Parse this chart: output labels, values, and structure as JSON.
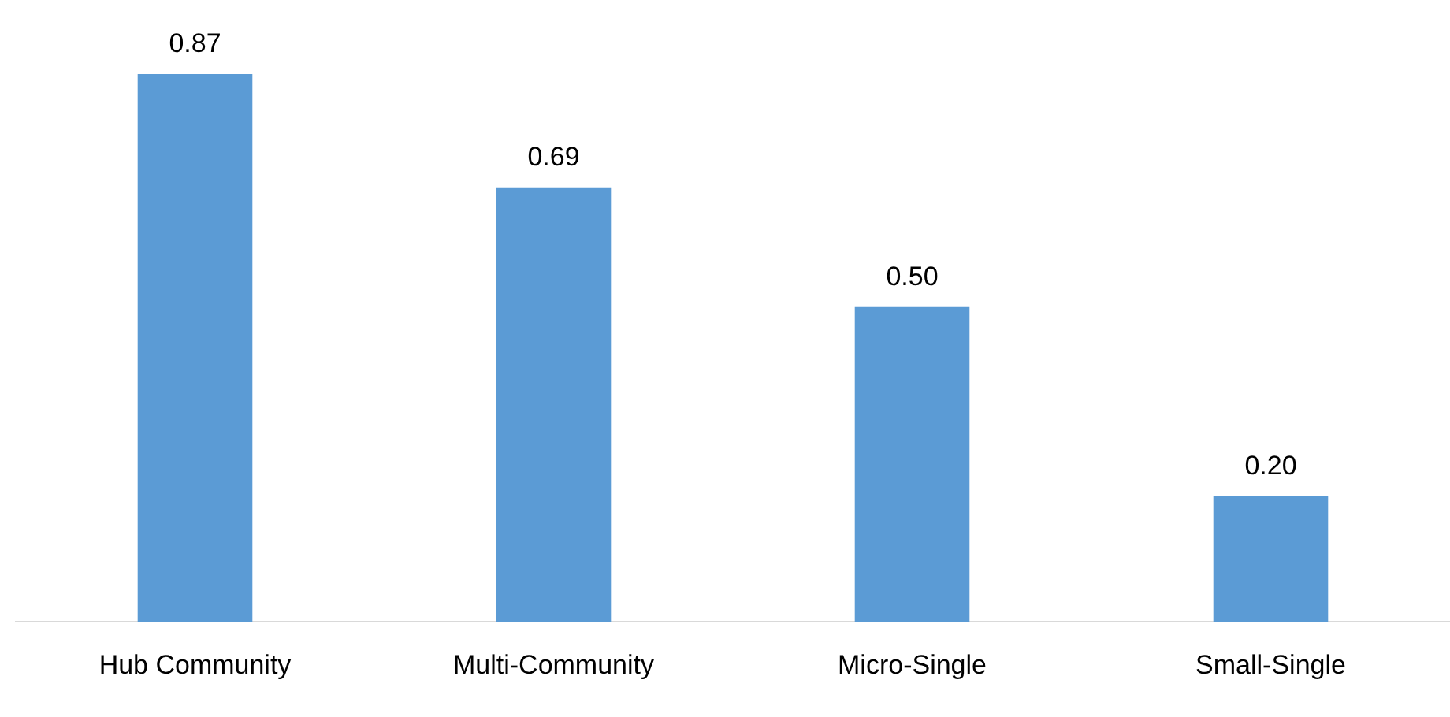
{
  "chart_data": {
    "type": "bar",
    "categories": [
      "Hub Community",
      "Multi-Community",
      "Micro-Single",
      "Small-Single"
    ],
    "values": [
      0.87,
      0.69,
      0.5,
      0.2
    ],
    "value_labels": [
      "0.87",
      "0.69",
      "0.50",
      "0.20"
    ],
    "color": "#5b9bd5",
    "grid": false,
    "legend": false
  }
}
